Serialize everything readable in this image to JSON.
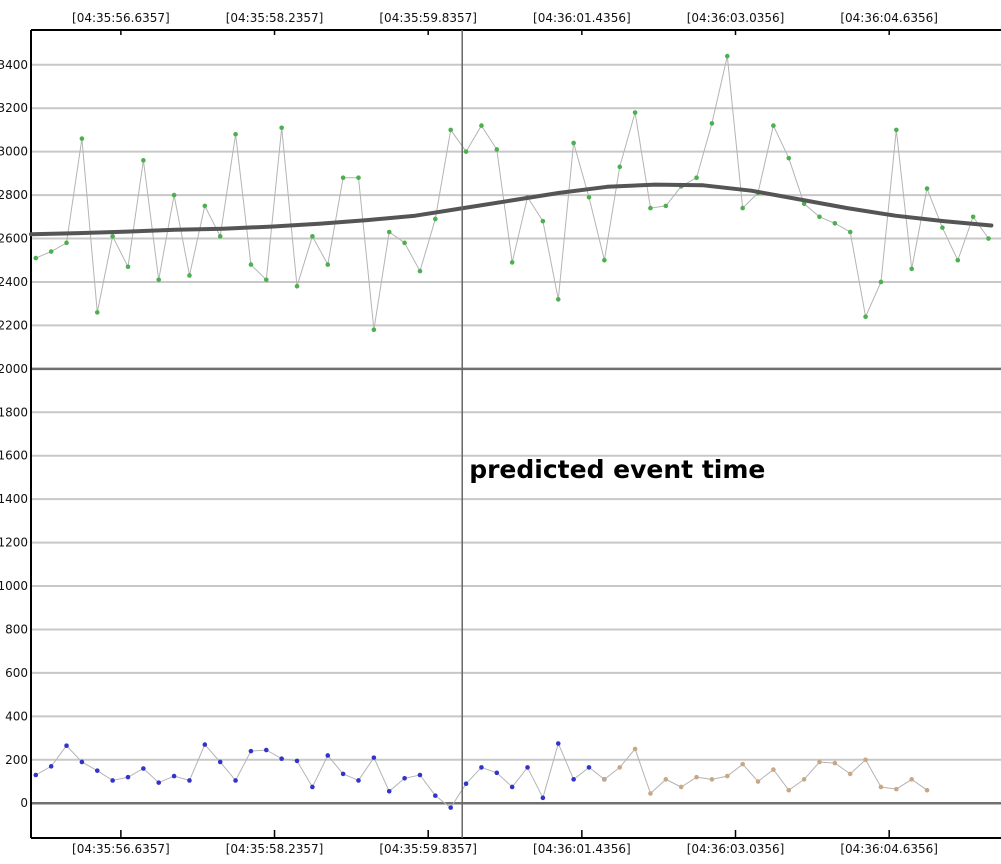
{
  "chart_data": {
    "type": "line",
    "title": "",
    "xlabel": "",
    "ylabel": "",
    "x_tick_labels": [
      "[04:35:56.6357]",
      "[04:35:58.2357]",
      "[04:35:59.8357]",
      "[04:36:01.4356]",
      "[04:36:03.0356]",
      "[04:36:04.6356]"
    ],
    "x_tick_times": [
      56.6357,
      58.2357,
      59.8357,
      61.4356,
      63.0356,
      64.6356
    ],
    "xlim": [
      55.7,
      65.8
    ],
    "y_ticks": [
      3400,
      3200,
      3000,
      2800,
      2600,
      2400,
      2200,
      2000,
      1800,
      1600,
      1400,
      1200,
      1000,
      800,
      600,
      400,
      200,
      0
    ],
    "y_tick_labels": [
      "3400",
      "3200",
      "3000",
      "2800",
      "2600",
      "2400",
      "2200",
      "2000",
      "1800",
      "1600",
      "1400",
      "1200",
      "1000",
      "800",
      "600",
      "400",
      "200",
      "0"
    ],
    "ylim": [
      -160,
      3560
    ],
    "grid": true,
    "legend": "none",
    "annotation": {
      "text": "predicted event time",
      "x": 60.19
    },
    "colors": {
      "grid": "#c8c8c8",
      "grid_major": "#707070",
      "raw_line": "#b4b4b4",
      "smooth": "#555555",
      "upper": "#4caf50",
      "lower_blue": "#3333cc",
      "lower_tan": "#c8a884"
    },
    "series": [
      {
        "kind": "raw",
        "color": "#4caf50",
        "x": [
          55.75,
          55.91,
          56.07,
          56.23,
          56.39,
          56.55,
          56.71,
          56.87,
          57.03,
          57.19,
          57.35,
          57.51,
          57.67,
          57.83,
          57.99,
          58.15,
          58.31,
          58.47,
          58.63,
          58.79,
          58.95,
          59.11,
          59.27,
          59.43,
          59.59,
          59.75,
          59.91,
          60.07,
          60.23,
          60.39,
          60.55,
          60.71,
          60.87,
          61.03,
          61.19,
          61.35,
          61.51,
          61.67,
          61.83,
          61.99,
          62.15,
          62.31,
          62.47,
          62.63,
          62.79,
          62.95,
          63.11,
          63.27,
          63.43,
          63.59,
          63.75,
          63.91,
          64.07,
          64.23,
          64.39,
          64.55,
          64.71,
          64.87,
          65.03,
          65.19,
          65.35,
          65.51,
          65.67
        ],
        "y": [
          2510,
          2540,
          2580,
          3060,
          2260,
          2610,
          2470,
          2960,
          2410,
          2800,
          2430,
          2750,
          2610,
          3080,
          2480,
          2410,
          3110,
          2380,
          2610,
          2480,
          2880,
          2880,
          2180,
          2630,
          2580,
          2450,
          2690,
          3100,
          3000,
          3120,
          3010,
          2490,
          2790,
          2680,
          2320,
          3040,
          2790,
          2500,
          2930,
          3180,
          2740,
          2750,
          2840,
          2880,
          3130,
          3440,
          2740,
          2810,
          3120,
          2970,
          2760,
          2700,
          2670,
          2630,
          2240,
          2400,
          3100,
          2460,
          2830,
          2650,
          2500,
          2700,
          2600
        ]
      },
      {
        "kind": "smoothed",
        "color": "#555555",
        "x": [
          55.7,
          56.2,
          56.7,
          57.2,
          57.7,
          58.2,
          58.7,
          59.2,
          59.7,
          60.2,
          60.7,
          61.2,
          61.7,
          62.2,
          62.7,
          63.2,
          63.7,
          64.2,
          64.7,
          65.2,
          65.7
        ],
        "y": [
          2620,
          2625,
          2632,
          2640,
          2645,
          2655,
          2668,
          2685,
          2705,
          2740,
          2775,
          2810,
          2838,
          2848,
          2845,
          2820,
          2780,
          2740,
          2705,
          2680,
          2660
        ]
      },
      {
        "kind": "raw",
        "color": "#3333cc",
        "x": [
          55.75,
          55.91,
          56.07,
          56.23,
          56.39,
          56.55,
          56.71,
          56.87,
          57.03,
          57.19,
          57.35,
          57.51,
          57.67,
          57.83,
          57.99,
          58.15,
          58.31,
          58.47,
          58.63,
          58.79,
          58.95,
          59.11,
          59.27,
          59.43,
          59.59,
          59.75,
          59.91,
          60.07,
          60.23,
          60.39,
          60.55,
          60.71,
          60.87,
          61.03,
          61.19,
          61.35,
          61.51,
          61.67
        ],
        "y": [
          130,
          170,
          265,
          190,
          150,
          105,
          120,
          160,
          95,
          125,
          105,
          270,
          190,
          105,
          240,
          245,
          205,
          195,
          75,
          220,
          135,
          105,
          210,
          55,
          115,
          130,
          35,
          -20,
          90,
          165,
          140,
          75,
          165,
          25,
          275,
          110,
          165,
          110
        ]
      },
      {
        "kind": "raw",
        "color": "#c8a884",
        "x": [
          61.67,
          61.83,
          61.99,
          62.15,
          62.31,
          62.47,
          62.63,
          62.79,
          62.95,
          63.11,
          63.27,
          63.43,
          63.59,
          63.75,
          63.91,
          64.07,
          64.23,
          64.39,
          64.55,
          64.71,
          64.87,
          65.03
        ],
        "y": [
          110,
          165,
          250,
          45,
          110,
          75,
          120,
          110,
          125,
          180,
          100,
          155,
          60,
          110,
          190,
          185,
          135,
          200,
          75,
          65,
          110,
          60
        ]
      }
    ]
  }
}
